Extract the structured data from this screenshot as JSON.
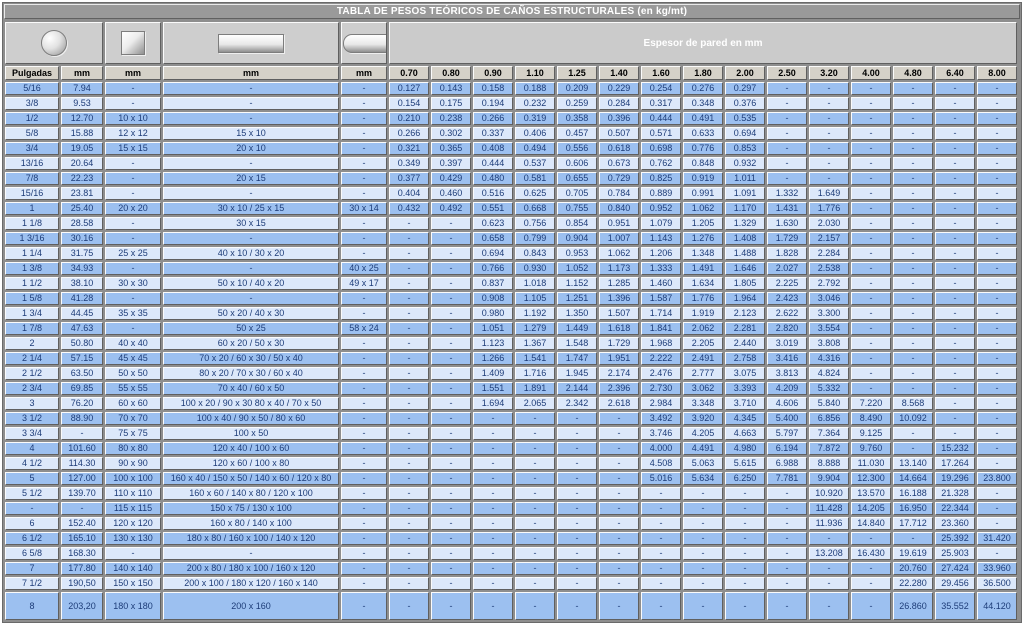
{
  "title": "TABLA DE PESOS TEÓRICOS DE CAÑOS ESTRUCTURALES (en kg/mt)",
  "header": {
    "espesor_label": "Espesor de pared en mm",
    "dim_columns": [
      "Pulgadas",
      "mm",
      "mm",
      "mm",
      "mm"
    ],
    "thickness_columns": [
      "0.70",
      "0.80",
      "0.90",
      "1.10",
      "1.25",
      "1.40",
      "1.60",
      "1.80",
      "2.00",
      "2.50",
      "3.20",
      "4.00",
      "4.80",
      "6.40",
      "8.00"
    ],
    "shape_icons": [
      "round-tube-icon",
      "square-tube-icon",
      "rectangular-tube-icon",
      "oval-tube-icon"
    ]
  },
  "colors": {
    "title_bg": "#9a9a9a",
    "title_text": "#ffffff",
    "header_bg": "#d5d1c8",
    "row_dark": "#9cc0f0",
    "row_light": "#dce8fa",
    "cell_text": "#1d3c78",
    "grid_bg": "#8e8e8e"
  },
  "rows": [
    [
      "5/16",
      "7.94",
      "-",
      "-",
      "-",
      "0.127",
      "0.143",
      "0.158",
      "0.188",
      "0.209",
      "0.229",
      "0.254",
      "0.276",
      "0.297",
      "-",
      "-",
      "-",
      "-",
      "-",
      "-"
    ],
    [
      "3/8",
      "9.53",
      "-",
      "-",
      "-",
      "0.154",
      "0.175",
      "0.194",
      "0.232",
      "0.259",
      "0.284",
      "0.317",
      "0.348",
      "0.376",
      "-",
      "-",
      "-",
      "-",
      "-",
      "-"
    ],
    [
      "1/2",
      "12.70",
      "10 x 10",
      "-",
      "-",
      "0.210",
      "0.238",
      "0.266",
      "0.319",
      "0.358",
      "0.396",
      "0.444",
      "0.491",
      "0.535",
      "-",
      "-",
      "-",
      "-",
      "-",
      "-"
    ],
    [
      "5/8",
      "15.88",
      "12 x 12",
      "15 x 10",
      "-",
      "0.266",
      "0.302",
      "0.337",
      "0.406",
      "0.457",
      "0.507",
      "0.571",
      "0.633",
      "0.694",
      "-",
      "-",
      "-",
      "-",
      "-",
      "-"
    ],
    [
      "3/4",
      "19.05",
      "15 x 15",
      "20 x 10",
      "-",
      "0.321",
      "0.365",
      "0.408",
      "0.494",
      "0.556",
      "0.618",
      "0.698",
      "0.776",
      "0.853",
      "-",
      "-",
      "-",
      "-",
      "-",
      "-"
    ],
    [
      "13/16",
      "20.64",
      "-",
      "-",
      "-",
      "0.349",
      "0.397",
      "0.444",
      "0.537",
      "0.606",
      "0.673",
      "0.762",
      "0.848",
      "0.932",
      "-",
      "-",
      "-",
      "-",
      "-",
      "-"
    ],
    [
      "7/8",
      "22.23",
      "-",
      "20 x 15",
      "-",
      "0.377",
      "0.429",
      "0.480",
      "0.581",
      "0.655",
      "0.729",
      "0.825",
      "0.919",
      "1.011",
      "-",
      "-",
      "-",
      "-",
      "-",
      "-"
    ],
    [
      "15/16",
      "23.81",
      "-",
      "-",
      "-",
      "0.404",
      "0.460",
      "0.516",
      "0.625",
      "0.705",
      "0.784",
      "0.889",
      "0.991",
      "1.091",
      "1.332",
      "1.649",
      "-",
      "-",
      "-",
      "-"
    ],
    [
      "1",
      "25.40",
      "20 x 20",
      "30 x 10 / 25 x 15",
      "30 x 14",
      "0.432",
      "0.492",
      "0.551",
      "0.668",
      "0.755",
      "0.840",
      "0.952",
      "1.062",
      "1.170",
      "1.431",
      "1.776",
      "-",
      "-",
      "-",
      "-"
    ],
    [
      "1 1/8",
      "28.58",
      "-",
      "30 x 15",
      "-",
      "-",
      "-",
      "0.623",
      "0.756",
      "0.854",
      "0.951",
      "1.079",
      "1.205",
      "1.329",
      "1.630",
      "2.030",
      "-",
      "-",
      "-",
      "-"
    ],
    [
      "1 3/16",
      "30.16",
      "-",
      "-",
      "-",
      "-",
      "-",
      "0.658",
      "0.799",
      "0.904",
      "1.007",
      "1.143",
      "1.276",
      "1.408",
      "1.729",
      "2.157",
      "-",
      "-",
      "-",
      "-"
    ],
    [
      "1 1/4",
      "31.75",
      "25 x 25",
      "40 x 10 / 30 x 20",
      "-",
      "-",
      "-",
      "0.694",
      "0.843",
      "0.953",
      "1.062",
      "1.206",
      "1.348",
      "1.488",
      "1.828",
      "2.284",
      "-",
      "-",
      "-",
      "-"
    ],
    [
      "1 3/8",
      "34.93",
      "-",
      "-",
      "40 x 25",
      "-",
      "-",
      "0.766",
      "0.930",
      "1.052",
      "1.173",
      "1.333",
      "1.491",
      "1.646",
      "2.027",
      "2.538",
      "-",
      "-",
      "-",
      "-"
    ],
    [
      "1 1/2",
      "38.10",
      "30 x 30",
      "50 x 10 / 40 x 20",
      "49 x 17",
      "-",
      "-",
      "0.837",
      "1.018",
      "1.152",
      "1.285",
      "1.460",
      "1.634",
      "1.805",
      "2.225",
      "2.792",
      "-",
      "-",
      "-",
      "-"
    ],
    [
      "1 5/8",
      "41.28",
      "-",
      "-",
      "-",
      "-",
      "-",
      "0.908",
      "1.105",
      "1.251",
      "1.396",
      "1.587",
      "1.776",
      "1.964",
      "2.423",
      "3.046",
      "-",
      "-",
      "-",
      "-"
    ],
    [
      "1 3/4",
      "44.45",
      "35 x 35",
      "50 x 20 / 40 x 30",
      "-",
      "-",
      "-",
      "0.980",
      "1.192",
      "1.350",
      "1.507",
      "1.714",
      "1.919",
      "2.123",
      "2.622",
      "3.300",
      "-",
      "-",
      "-",
      "-"
    ],
    [
      "1 7/8",
      "47.63",
      "-",
      "50 x 25",
      "58 x 24",
      "-",
      "-",
      "1.051",
      "1.279",
      "1.449",
      "1.618",
      "1.841",
      "2.062",
      "2.281",
      "2.820",
      "3.554",
      "-",
      "-",
      "-",
      "-"
    ],
    [
      "2",
      "50.80",
      "40 x 40",
      "60 x 20 / 50 x 30",
      "-",
      "-",
      "-",
      "1.123",
      "1.367",
      "1.548",
      "1.729",
      "1.968",
      "2.205",
      "2.440",
      "3.019",
      "3.808",
      "-",
      "-",
      "-",
      "-"
    ],
    [
      "2 1/4",
      "57.15",
      "45 x 45",
      "70 x 20 / 60 x 30 / 50 x 40",
      "-",
      "-",
      "-",
      "1.266",
      "1.541",
      "1.747",
      "1.951",
      "2.222",
      "2.491",
      "2.758",
      "3.416",
      "4.316",
      "-",
      "-",
      "-",
      "-"
    ],
    [
      "2 1/2",
      "63.50",
      "50 x 50",
      "80 x 20 / 70 x 30 / 60 x 40",
      "-",
      "-",
      "-",
      "1.409",
      "1.716",
      "1.945",
      "2.174",
      "2.476",
      "2.777",
      "3.075",
      "3.813",
      "4.824",
      "-",
      "-",
      "-",
      "-"
    ],
    [
      "2 3/4",
      "69.85",
      "55 x 55",
      "70 x 40 / 60 x 50",
      "-",
      "-",
      "-",
      "1.551",
      "1.891",
      "2.144",
      "2.396",
      "2.730",
      "3.062",
      "3.393",
      "4.209",
      "5.332",
      "-",
      "-",
      "-",
      "-"
    ],
    [
      "3",
      "76.20",
      "60 x 60",
      "100 x 20 / 90 x 30 80 x 40 / 70 x 50",
      "-",
      "-",
      "-",
      "1.694",
      "2.065",
      "2.342",
      "2.618",
      "2.984",
      "3.348",
      "3.710",
      "4.606",
      "5.840",
      "7.220",
      "8.568",
      "-",
      "-"
    ],
    [
      "3 1/2",
      "88.90",
      "70 x 70",
      "100 x 40 / 90 x 50 / 80 x 60",
      "-",
      "-",
      "-",
      "-",
      "-",
      "-",
      "-",
      "3.492",
      "3.920",
      "4.345",
      "5.400",
      "6.856",
      "8.490",
      "10.092",
      "-",
      "-"
    ],
    [
      "3 3/4",
      "-",
      "75 x 75",
      "100 x 50",
      "-",
      "-",
      "-",
      "-",
      "-",
      "-",
      "-",
      "3.746",
      "4.205",
      "4.663",
      "5.797",
      "7.364",
      "9.125",
      "-",
      "-",
      "-"
    ],
    [
      "4",
      "101.60",
      "80 x 80",
      "120 x 40 / 100 x 60",
      "-",
      "-",
      "-",
      "-",
      "-",
      "-",
      "-",
      "4.000",
      "4.491",
      "4.980",
      "6.194",
      "7.872",
      "9.760",
      "-",
      "15.232",
      "-"
    ],
    [
      "4 1/2",
      "114.30",
      "90 x 90",
      "120 x 60 / 100 x 80",
      "-",
      "-",
      "-",
      "-",
      "-",
      "-",
      "-",
      "4.508",
      "5.063",
      "5.615",
      "6.988",
      "8.888",
      "11.030",
      "13.140",
      "17.264",
      "-"
    ],
    [
      "5",
      "127.00",
      "100 x 100",
      "160 x 40 / 150 x 50 / 140 x 60 / 120 x 80",
      "-",
      "-",
      "-",
      "-",
      "-",
      "-",
      "-",
      "5.016",
      "5.634",
      "6.250",
      "7.781",
      "9.904",
      "12.300",
      "14.664",
      "19.296",
      "23.800"
    ],
    [
      "5 1/2",
      "139.70",
      "110 x 110",
      "160 x 60 / 140 x 80 / 120 x 100",
      "-",
      "-",
      "-",
      "-",
      "-",
      "-",
      "-",
      "-",
      "-",
      "-",
      "-",
      "10.920",
      "13.570",
      "16.188",
      "21.328",
      "-"
    ],
    [
      "-",
      "-",
      "115 x 115",
      "150 x 75 / 130 x 100",
      "-",
      "-",
      "-",
      "-",
      "-",
      "-",
      "-",
      "-",
      "-",
      "-",
      "-",
      "11.428",
      "14.205",
      "16.950",
      "22.344",
      "-"
    ],
    [
      "6",
      "152.40",
      "120 x 120",
      "160 x 80 / 140 x 100",
      "-",
      "-",
      "-",
      "-",
      "-",
      "-",
      "-",
      "-",
      "-",
      "-",
      "-",
      "11.936",
      "14.840",
      "17.712",
      "23.360",
      "-"
    ],
    [
      "6 1/2",
      "165.10",
      "130 x 130",
      "180 x 80 / 160 x 100 / 140 x 120",
      "-",
      "-",
      "-",
      "-",
      "-",
      "-",
      "-",
      "-",
      "-",
      "-",
      "-",
      "-",
      "-",
      "-",
      "25.392",
      "31.420"
    ],
    [
      "6 5/8",
      "168.30",
      "-",
      "-",
      "-",
      "-",
      "-",
      "-",
      "-",
      "-",
      "-",
      "-",
      "-",
      "-",
      "-",
      "13.208",
      "16.430",
      "19.619",
      "25.903",
      "-"
    ],
    [
      "7",
      "177.80",
      "140 x 140",
      "200 x 80 / 180 x 100 / 160 x 120",
      "-",
      "-",
      "-",
      "-",
      "-",
      "-",
      "-",
      "-",
      "-",
      "-",
      "-",
      "-",
      "-",
      "20.760",
      "27.424",
      "33.960"
    ],
    [
      "7 1/2",
      "190,50",
      "150 x 150",
      "200 x 100 / 180 x 120 / 160 x 140",
      "-",
      "-",
      "-",
      "-",
      "-",
      "-",
      "-",
      "-",
      "-",
      "-",
      "-",
      "-",
      "-",
      "22.280",
      "29.456",
      "36.500"
    ],
    [
      "8",
      "203,20",
      "180 x 180",
      "200 x 160",
      "-",
      "-",
      "-",
      "-",
      "-",
      "-",
      "-",
      "-",
      "-",
      "-",
      "-",
      "-",
      "-",
      "26.860",
      "35.552",
      "44.120"
    ]
  ]
}
